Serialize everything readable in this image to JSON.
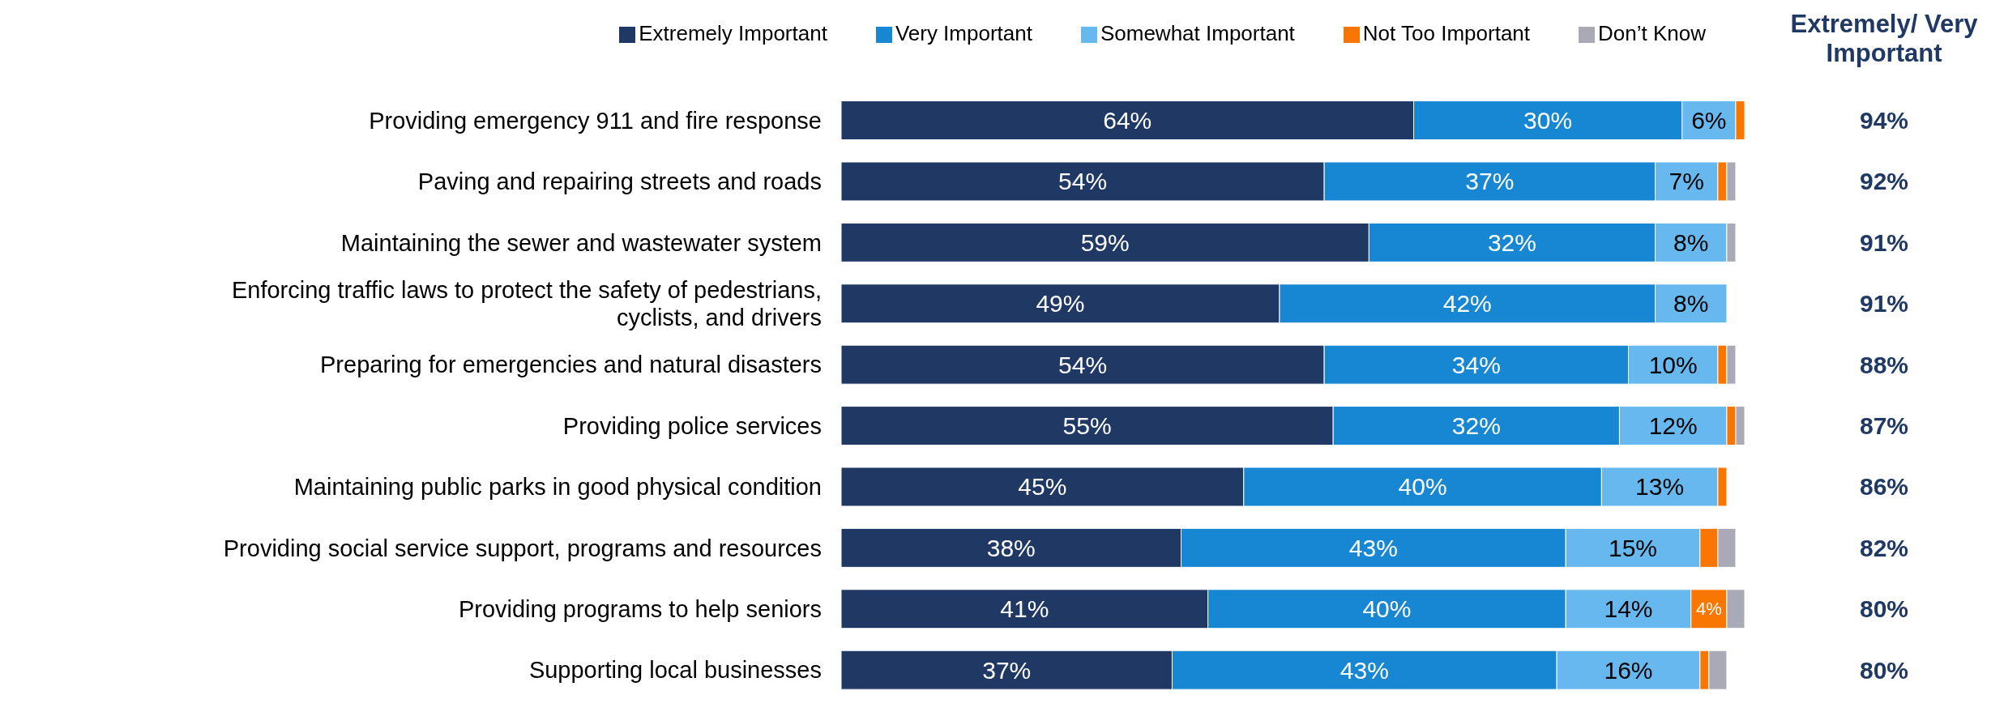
{
  "chart_data": {
    "type": "bar",
    "orientation": "horizontal",
    "stacked": true,
    "legend": "top",
    "categories": [
      "Providing emergency 911 and fire response",
      "Paving and repairing streets and roads",
      "Maintaining the sewer and wastewater system",
      "Enforcing traffic laws to protect the safety of pedestrians, cyclists, and drivers",
      "Preparing for emergencies and natural disasters",
      "Providing police services",
      "Maintaining public parks in good physical condition",
      "Providing social service support, programs and resources",
      "Providing programs to help seniors",
      "Supporting local businesses"
    ],
    "series": [
      {
        "name": "Extremely Important",
        "color": "#1f3864",
        "values": [
          64,
          54,
          59,
          49,
          54,
          55,
          45,
          38,
          41,
          37
        ],
        "value_labels": [
          "64%",
          "54%",
          "59%",
          "49%",
          "54%",
          "55%",
          "45%",
          "38%",
          "41%",
          "37%"
        ]
      },
      {
        "name": "Very Important",
        "color": "#1787d4",
        "values": [
          30,
          37,
          32,
          42,
          34,
          32,
          40,
          43,
          40,
          43
        ],
        "value_labels": [
          "30%",
          "37%",
          "32%",
          "42%",
          "34%",
          "32%",
          "40%",
          "43%",
          "40%",
          "43%"
        ]
      },
      {
        "name": "Somewhat Important",
        "color": "#66b8ee",
        "values": [
          6,
          7,
          8,
          8,
          10,
          12,
          13,
          15,
          14,
          16
        ],
        "value_labels": [
          "6%",
          "7%",
          "8%",
          "8%",
          "10%",
          "12%",
          "13%",
          "15%",
          "14%",
          "16%"
        ]
      },
      {
        "name": "Not Too Important",
        "color": "#f97600",
        "values": [
          1,
          1,
          0,
          0,
          1,
          1,
          1,
          2,
          4,
          1
        ],
        "value_labels": [
          null,
          null,
          null,
          null,
          null,
          null,
          null,
          null,
          "4%",
          null
        ]
      },
      {
        "name": "Don’t Know",
        "color": "#a9aab5",
        "values": [
          0,
          1,
          1,
          0,
          1,
          1,
          0,
          2,
          2,
          2
        ],
        "value_labels": [
          null,
          null,
          null,
          null,
          null,
          null,
          null,
          null,
          null,
          null
        ]
      }
    ],
    "annotations": [
      "Extremely/ Very Important",
      "94%",
      "92%",
      "91%",
      "91%",
      "88%",
      "87%",
      "86%",
      "82%",
      "80%",
      "80%"
    ]
  }
}
